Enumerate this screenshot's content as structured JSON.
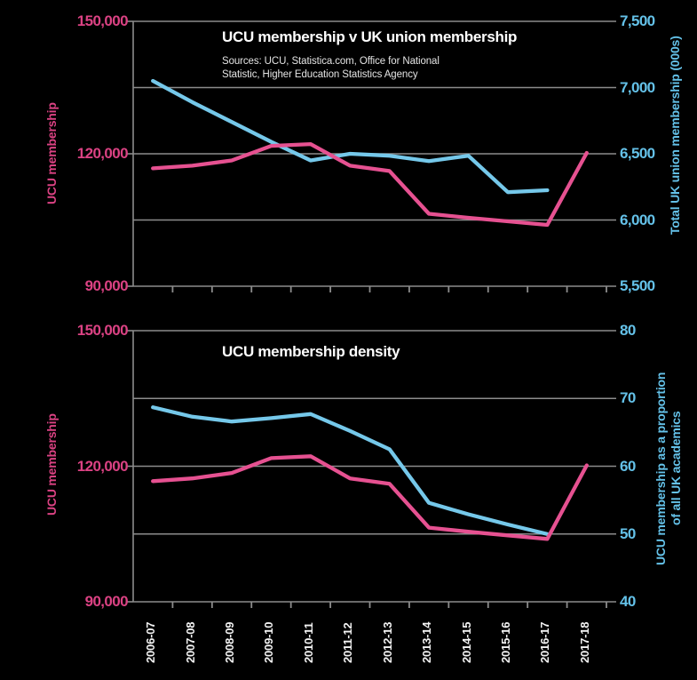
{
  "colors": {
    "background": "#000000",
    "pink_line": "#e65191",
    "pink_text": "#db4283",
    "blue_line": "#75c8ea",
    "blue_text": "#64c1e8",
    "grid": "#8c8c8c",
    "title_text": "#ffffff",
    "sources_text": "#e4e4e4",
    "xlabel_text": "#f3f3f3"
  },
  "chart_data": [
    {
      "type": "line",
      "title": "UCU membership v UK union membership",
      "source_lines": [
        "Sources: UCU, Statistica.com, Office for National",
        "Statistic, Higher Education Statistics Agency"
      ],
      "categories": [
        "2006-07",
        "2007-08",
        "2008-09",
        "2009-10",
        "2010-11",
        "2011-12",
        "2012-13",
        "2013-14",
        "2014-15",
        "2015-16",
        "2016-17",
        "2017-18"
      ],
      "x_labels_visible": false,
      "left_axis": {
        "label": "UCU membership",
        "range": [
          90000,
          150000
        ],
        "ticks": [
          {
            "value": 150000,
            "label": "150,000"
          },
          {
            "value": 120000,
            "label": "120,000"
          },
          {
            "value": 90000,
            "label": "90,000"
          }
        ]
      },
      "right_axis": {
        "label": "Total UK union membership (000s)",
        "range": [
          5500,
          7500
        ],
        "ticks": [
          {
            "value": 7500,
            "label": "7,500"
          },
          {
            "value": 7000,
            "label": "7,000"
          },
          {
            "value": 6500,
            "label": "6,500"
          },
          {
            "value": 6000,
            "label": "6,000"
          },
          {
            "value": 5500,
            "label": "5,500"
          }
        ]
      },
      "gridlines": {
        "axis": "right",
        "values": [
          7000,
          6500,
          6000
        ]
      },
      "series": [
        {
          "name": "UCU membership",
          "axis": "left",
          "color_key": "pink",
          "values": [
            116700,
            117300,
            118500,
            121800,
            122200,
            117300,
            116100,
            106400,
            105500,
            104700,
            103900,
            120200
          ]
        },
        {
          "name": "Total UK union membership (000s)",
          "axis": "right",
          "color_key": "blue",
          "values": [
            7050,
            6890,
            6740,
            6590,
            6450,
            6500,
            6485,
            6445,
            6485,
            6210,
            6225,
            null
          ]
        }
      ]
    },
    {
      "type": "line",
      "title": "UCU membership density",
      "categories": [
        "2006-07",
        "2007-08",
        "2008-09",
        "2009-10",
        "2010-11",
        "2011-12",
        "2012-13",
        "2013-14",
        "2014-15",
        "2015-16",
        "2016-17",
        "2017-18"
      ],
      "x_labels_visible": true,
      "left_axis": {
        "label": "UCU membership",
        "range": [
          90000,
          150000
        ],
        "ticks": [
          {
            "value": 150000,
            "label": "150,000"
          },
          {
            "value": 120000,
            "label": "120,000"
          },
          {
            "value": 90000,
            "label": "90,000"
          }
        ]
      },
      "right_axis": {
        "label_lines": [
          "UCU membership as a proportion",
          "of all UK academics"
        ],
        "range": [
          40,
          80
        ],
        "ticks": [
          {
            "value": 80,
            "label": "80"
          },
          {
            "value": 70,
            "label": "70"
          },
          {
            "value": 60,
            "label": "60"
          },
          {
            "value": 50,
            "label": "50"
          },
          {
            "value": 40,
            "label": "40"
          }
        ]
      },
      "gridlines": {
        "axis": "right",
        "values": [
          70,
          60,
          50
        ]
      },
      "series": [
        {
          "name": "UCU membership",
          "axis": "left",
          "color_key": "pink",
          "values": [
            116700,
            117300,
            118500,
            121800,
            122200,
            117300,
            116100,
            106400,
            105500,
            104700,
            103900,
            120200
          ]
        },
        {
          "name": "UCU membership as a proportion of all UK academics",
          "axis": "right",
          "color_key": "blue",
          "values": [
            68.7,
            67.3,
            66.6,
            67.1,
            67.7,
            65.2,
            62.5,
            54.6,
            52.9,
            51.4,
            50.0,
            null
          ]
        }
      ]
    }
  ]
}
